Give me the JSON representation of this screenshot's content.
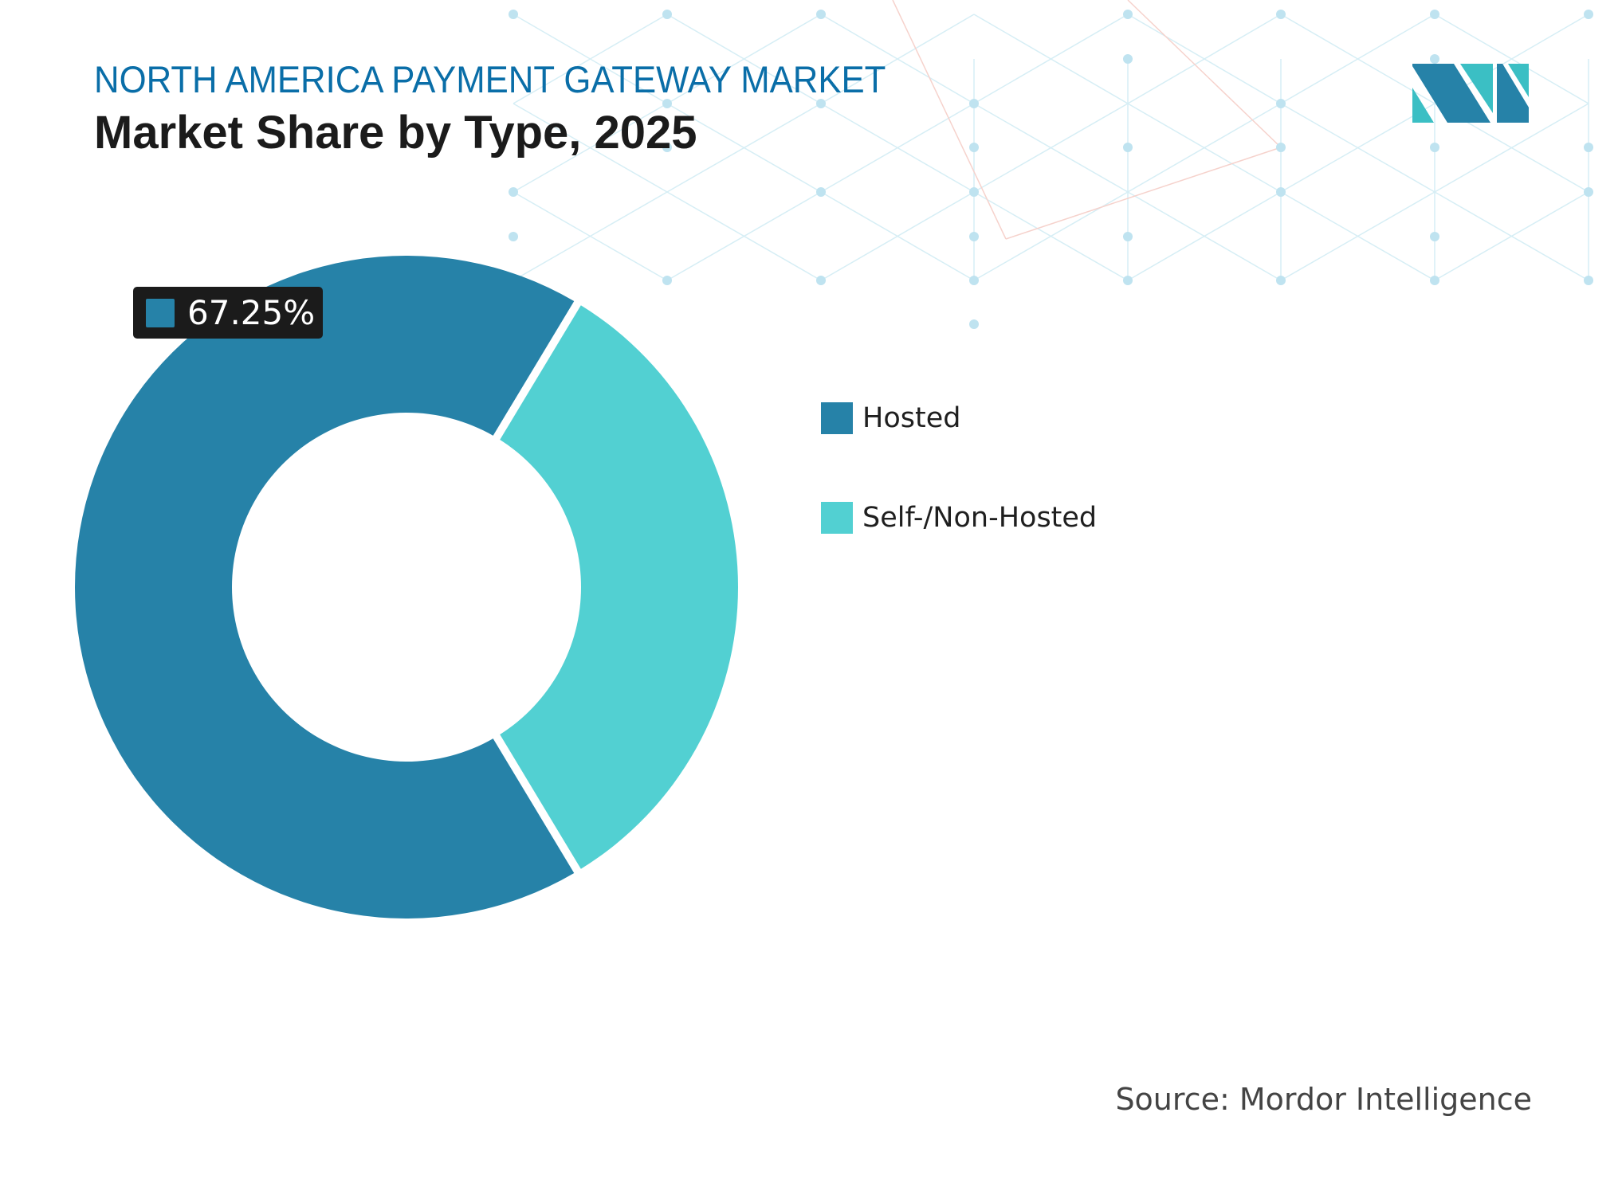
{
  "header": {
    "supertitle": "NORTH AMERICA PAYMENT GATEWAY MARKET",
    "title": "Market Share by Type, 2025"
  },
  "logo": {
    "icon": "mordor-intelligence-logo-icon",
    "colors": {
      "dark": "#2682a8",
      "light": "#3bbfc4"
    }
  },
  "highlight_label": {
    "value": "67.25%",
    "swatch_color": "#2682a8"
  },
  "legend": [
    {
      "label": "Hosted",
      "color": "#2682a8"
    },
    {
      "label": "Self-/Non-Hosted",
      "color": "#52d0d2"
    }
  ],
  "source": "Source: Mordor Intelligence",
  "colors": {
    "title_blue": "#0a6ea8",
    "title_dark": "#1b1b1b",
    "background_network_line": "#d6eef5",
    "background_network_accent": "#f6d2cc",
    "background_network_node": "#bfe3f0"
  },
  "chart_data": {
    "type": "pie",
    "subtype": "donut",
    "title": "NORTH AMERICA PAYMENT GATEWAY MARKET",
    "subtitle": "Market Share by Type, 2025",
    "categories": [
      "Hosted",
      "Self-/Non-Hosted"
    ],
    "values": [
      67.25,
      32.75
    ],
    "unit": "%",
    "colors": [
      "#2682a8",
      "#52d0d2"
    ],
    "data_labels": [
      {
        "category": "Hosted",
        "text": "67.25%"
      }
    ],
    "legend_position": "right",
    "annotations": [
      "Source: Mordor Intelligence"
    ]
  }
}
